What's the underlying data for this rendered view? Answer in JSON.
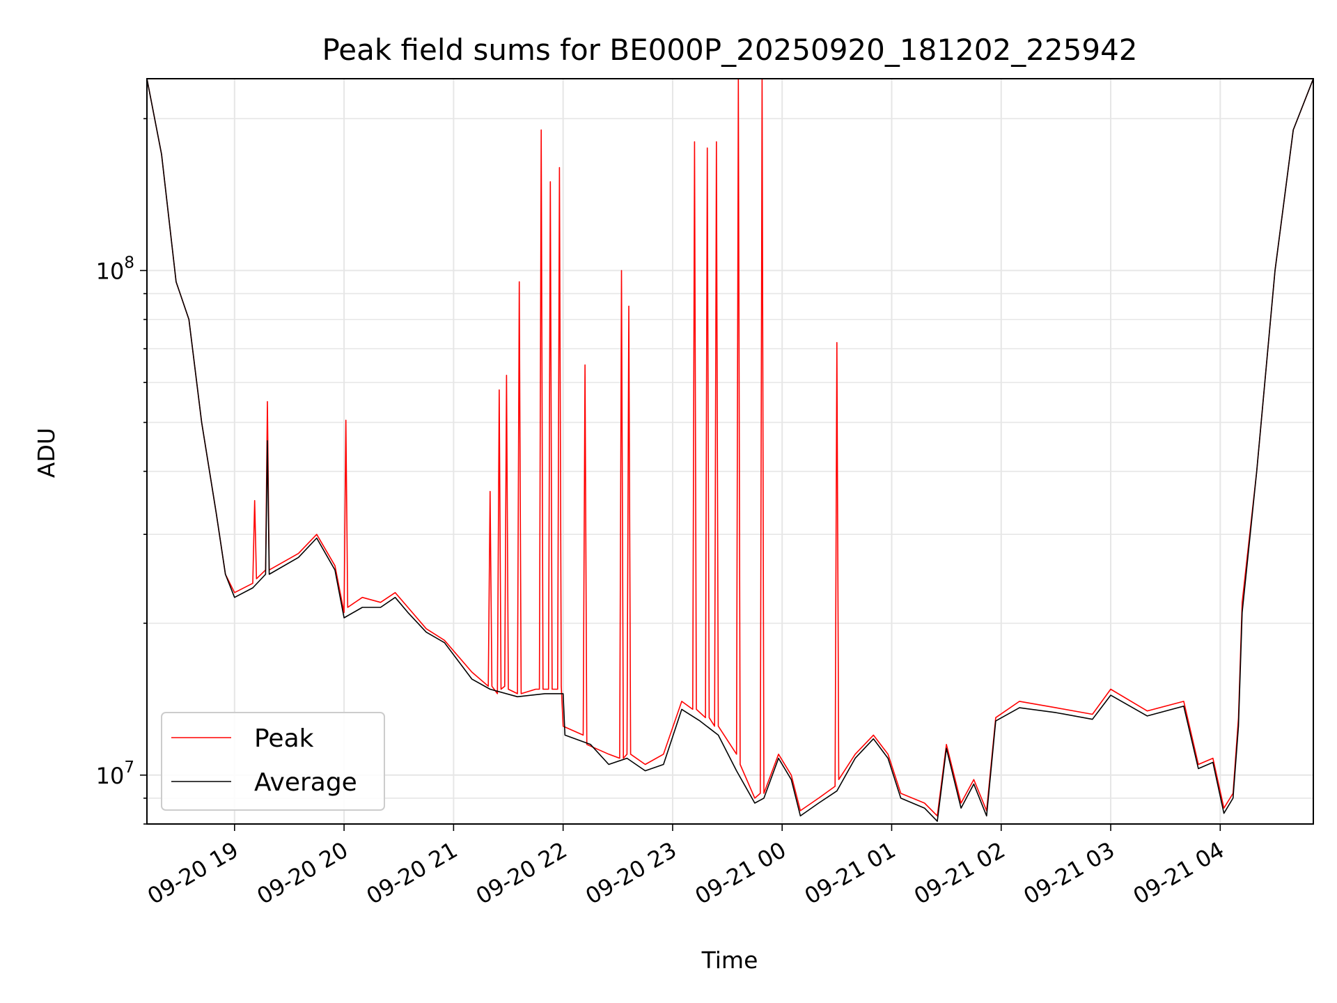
{
  "chart_data": {
    "type": "line",
    "title": "Peak field sums for BE000P_20250920_181202_225942",
    "xlabel": "Time",
    "ylabel": "ADU",
    "y_scale": "log",
    "ylim": [
      8000000,
      240000000
    ],
    "xlim": [
      "2025-09-20 18:12",
      "2025-09-21 04:51"
    ],
    "grid": true,
    "legend_position": "lower-left",
    "x_ticks": [
      {
        "t": "2025-09-20 19:00",
        "label": "09-20 19"
      },
      {
        "t": "2025-09-20 20:00",
        "label": "09-20 20"
      },
      {
        "t": "2025-09-20 21:00",
        "label": "09-20 21"
      },
      {
        "t": "2025-09-20 22:00",
        "label": "09-20 22"
      },
      {
        "t": "2025-09-20 23:00",
        "label": "09-20 23"
      },
      {
        "t": "2025-09-21 00:00",
        "label": "09-21 00"
      },
      {
        "t": "2025-09-21 01:00",
        "label": "09-21 01"
      },
      {
        "t": "2025-09-21 02:00",
        "label": "09-21 02"
      },
      {
        "t": "2025-09-21 03:00",
        "label": "09-21 03"
      },
      {
        "t": "2025-09-21 04:00",
        "label": "09-21 04"
      }
    ],
    "y_ticks": [
      {
        "value": 10000000,
        "base": "10",
        "exp": "7"
      },
      {
        "value": 100000000,
        "base": "10",
        "exp": "8"
      }
    ],
    "series": [
      {
        "name": "Peak",
        "color": "#ff0000",
        "points": [
          [
            "2025-09-20 18:12",
            240000000
          ],
          [
            "2025-09-20 18:20",
            170000000
          ],
          [
            "2025-09-20 18:28",
            95000000
          ],
          [
            "2025-09-20 18:35",
            80000000
          ],
          [
            "2025-09-20 18:42",
            50000000
          ],
          [
            "2025-09-20 18:50",
            33000000
          ],
          [
            "2025-09-20 18:55",
            25000000
          ],
          [
            "2025-09-20 19:00",
            23000000
          ],
          [
            "2025-09-20 19:10",
            24000000
          ],
          [
            "2025-09-20 19:11",
            35000000
          ],
          [
            "2025-09-20 19:12",
            24500000
          ],
          [
            "2025-09-20 19:17",
            25500000
          ],
          [
            "2025-09-20 19:18",
            55000000
          ],
          [
            "2025-09-20 19:19",
            25500000
          ],
          [
            "2025-09-20 19:35",
            27500000
          ],
          [
            "2025-09-20 19:45",
            30000000
          ],
          [
            "2025-09-20 19:55",
            26000000
          ],
          [
            "2025-09-20 20:00",
            21000000
          ],
          [
            "2025-09-20 20:01",
            50500000
          ],
          [
            "2025-09-20 20:02",
            21500000
          ],
          [
            "2025-09-20 20:10",
            22500000
          ],
          [
            "2025-09-20 20:20",
            22000000
          ],
          [
            "2025-09-20 20:28",
            23000000
          ],
          [
            "2025-09-20 20:35",
            21500000
          ],
          [
            "2025-09-20 20:45",
            19500000
          ],
          [
            "2025-09-20 20:55",
            18500000
          ],
          [
            "2025-09-20 21:10",
            16000000
          ],
          [
            "2025-09-20 21:19",
            15000000
          ],
          [
            "2025-09-20 21:20",
            36500000
          ],
          [
            "2025-09-20 21:21",
            15000000
          ],
          [
            "2025-09-20 21:24",
            14500000
          ],
          [
            "2025-09-20 21:25",
            58000000
          ],
          [
            "2025-09-20 21:26",
            14800000
          ],
          [
            "2025-09-20 21:28",
            15000000
          ],
          [
            "2025-09-20 21:29",
            62000000
          ],
          [
            "2025-09-20 21:30",
            14800000
          ],
          [
            "2025-09-20 21:35",
            14500000
          ],
          [
            "2025-09-20 21:36",
            95000000
          ],
          [
            "2025-09-20 21:37",
            14500000
          ],
          [
            "2025-09-20 21:45",
            14800000
          ],
          [
            "2025-09-20 21:47",
            14800000
          ],
          [
            "2025-09-20 21:48",
            190000000
          ],
          [
            "2025-09-20 21:49",
            14800000
          ],
          [
            "2025-09-20 21:52",
            14800000
          ],
          [
            "2025-09-20 21:53",
            150000000
          ],
          [
            "2025-09-20 21:54",
            14800000
          ],
          [
            "2025-09-20 21:57",
            14800000
          ],
          [
            "2025-09-20 21:58",
            160000000
          ],
          [
            "2025-09-20 21:59",
            15000000
          ],
          [
            "2025-09-20 22:00",
            12500000
          ],
          [
            "2025-09-20 22:11",
            12000000
          ],
          [
            "2025-09-20 22:12",
            65000000
          ],
          [
            "2025-09-20 22:13",
            11500000
          ],
          [
            "2025-09-20 22:25",
            11000000
          ],
          [
            "2025-09-20 22:31",
            10800000
          ],
          [
            "2025-09-20 22:32",
            100000000
          ],
          [
            "2025-09-20 22:33",
            10800000
          ],
          [
            "2025-09-20 22:35",
            11000000
          ],
          [
            "2025-09-20 22:36",
            85000000
          ],
          [
            "2025-09-20 22:37",
            11000000
          ],
          [
            "2025-09-20 22:45",
            10500000
          ],
          [
            "2025-09-20 22:55",
            11000000
          ],
          [
            "2025-09-20 23:05",
            14000000
          ],
          [
            "2025-09-20 23:11",
            13500000
          ],
          [
            "2025-09-20 23:12",
            180000000
          ],
          [
            "2025-09-20 23:13",
            13500000
          ],
          [
            "2025-09-20 23:18",
            13000000
          ],
          [
            "2025-09-20 23:19",
            175000000
          ],
          [
            "2025-09-20 23:20",
            13000000
          ],
          [
            "2025-09-20 23:23",
            12500000
          ],
          [
            "2025-09-20 23:24",
            180000000
          ],
          [
            "2025-09-20 23:25",
            12500000
          ],
          [
            "2025-09-20 23:35",
            11000000
          ],
          [
            "2025-09-20 23:36",
            240000000
          ],
          [
            "2025-09-20 23:37",
            10500000
          ],
          [
            "2025-09-20 23:45",
            9000000
          ],
          [
            "2025-09-20 23:48",
            9200000
          ],
          [
            "2025-09-20 23:49",
            240000000
          ],
          [
            "2025-09-20 23:50",
            9200000
          ],
          [
            "2025-09-20 23:58",
            11000000
          ],
          [
            "2025-09-21 00:05",
            10000000
          ],
          [
            "2025-09-21 00:10",
            8500000
          ],
          [
            "2025-09-21 00:20",
            9000000
          ],
          [
            "2025-09-21 00:29",
            9500000
          ],
          [
            "2025-09-21 00:30",
            72000000
          ],
          [
            "2025-09-21 00:31",
            9800000
          ],
          [
            "2025-09-21 00:40",
            11000000
          ],
          [
            "2025-09-21 00:50",
            12000000
          ],
          [
            "2025-09-21 00:58",
            11000000
          ],
          [
            "2025-09-21 01:05",
            9200000
          ],
          [
            "2025-09-21 01:18",
            8800000
          ],
          [
            "2025-09-21 01:25",
            8300000
          ],
          [
            "2025-09-21 01:30",
            11500000
          ],
          [
            "2025-09-21 01:38",
            8800000
          ],
          [
            "2025-09-21 01:45",
            9800000
          ],
          [
            "2025-09-21 01:52",
            8500000
          ],
          [
            "2025-09-21 01:57",
            13000000
          ],
          [
            "2025-09-21 02:10",
            14000000
          ],
          [
            "2025-09-21 02:30",
            13600000
          ],
          [
            "2025-09-21 02:50",
            13200000
          ],
          [
            "2025-09-21 03:00",
            14800000
          ],
          [
            "2025-09-21 03:20",
            13400000
          ],
          [
            "2025-09-21 03:40",
            14000000
          ],
          [
            "2025-09-21 03:48",
            10500000
          ],
          [
            "2025-09-21 03:56",
            10800000
          ],
          [
            "2025-09-21 04:02",
            8600000
          ],
          [
            "2025-09-21 04:07",
            9200000
          ],
          [
            "2025-09-21 04:10",
            13000000
          ],
          [
            "2025-09-21 04:12",
            22000000
          ],
          [
            "2025-09-21 04:20",
            40000000
          ],
          [
            "2025-09-21 04:30",
            100000000
          ],
          [
            "2025-09-21 04:40",
            190000000
          ],
          [
            "2025-09-21 04:51",
            240000000
          ]
        ]
      },
      {
        "name": "Average",
        "color": "#000000",
        "points": [
          [
            "2025-09-20 18:12",
            240000000
          ],
          [
            "2025-09-20 18:20",
            170000000
          ],
          [
            "2025-09-20 18:28",
            95000000
          ],
          [
            "2025-09-20 18:35",
            80000000
          ],
          [
            "2025-09-20 18:42",
            50000000
          ],
          [
            "2025-09-20 18:50",
            33000000
          ],
          [
            "2025-09-20 18:55",
            25000000
          ],
          [
            "2025-09-20 19:00",
            22500000
          ],
          [
            "2025-09-20 19:10",
            23500000
          ],
          [
            "2025-09-20 19:17",
            25000000
          ],
          [
            "2025-09-20 19:18",
            46000000
          ],
          [
            "2025-09-20 19:19",
            25000000
          ],
          [
            "2025-09-20 19:35",
            27000000
          ],
          [
            "2025-09-20 19:45",
            29500000
          ],
          [
            "2025-09-20 19:55",
            25500000
          ],
          [
            "2025-09-20 20:00",
            20500000
          ],
          [
            "2025-09-20 20:10",
            21500000
          ],
          [
            "2025-09-20 20:20",
            21500000
          ],
          [
            "2025-09-20 20:28",
            22500000
          ],
          [
            "2025-09-20 20:35",
            21000000
          ],
          [
            "2025-09-20 20:45",
            19200000
          ],
          [
            "2025-09-20 20:55",
            18300000
          ],
          [
            "2025-09-20 21:10",
            15500000
          ],
          [
            "2025-09-20 21:20",
            14800000
          ],
          [
            "2025-09-20 21:35",
            14300000
          ],
          [
            "2025-09-20 21:50",
            14500000
          ],
          [
            "2025-09-20 22:00",
            14500000
          ],
          [
            "2025-09-20 22:01",
            12000000
          ],
          [
            "2025-09-20 22:15",
            11500000
          ],
          [
            "2025-09-20 22:25",
            10500000
          ],
          [
            "2025-09-20 22:35",
            10800000
          ],
          [
            "2025-09-20 22:45",
            10200000
          ],
          [
            "2025-09-20 22:55",
            10500000
          ],
          [
            "2025-09-20 23:05",
            13500000
          ],
          [
            "2025-09-20 23:15",
            12800000
          ],
          [
            "2025-09-20 23:25",
            12000000
          ],
          [
            "2025-09-20 23:35",
            10200000
          ],
          [
            "2025-09-20 23:45",
            8800000
          ],
          [
            "2025-09-20 23:50",
            9000000
          ],
          [
            "2025-09-20 23:58",
            10800000
          ],
          [
            "2025-09-21 00:05",
            9800000
          ],
          [
            "2025-09-21 00:10",
            8300000
          ],
          [
            "2025-09-21 00:20",
            8800000
          ],
          [
            "2025-09-21 00:30",
            9300000
          ],
          [
            "2025-09-21 00:40",
            10800000
          ],
          [
            "2025-09-21 00:50",
            11800000
          ],
          [
            "2025-09-21 00:58",
            10800000
          ],
          [
            "2025-09-21 01:05",
            9000000
          ],
          [
            "2025-09-21 01:18",
            8600000
          ],
          [
            "2025-09-21 01:25",
            8100000
          ],
          [
            "2025-09-21 01:30",
            11300000
          ],
          [
            "2025-09-21 01:38",
            8600000
          ],
          [
            "2025-09-21 01:45",
            9600000
          ],
          [
            "2025-09-21 01:52",
            8300000
          ],
          [
            "2025-09-21 01:57",
            12800000
          ],
          [
            "2025-09-21 02:10",
            13600000
          ],
          [
            "2025-09-21 02:30",
            13300000
          ],
          [
            "2025-09-21 02:50",
            12900000
          ],
          [
            "2025-09-21 03:00",
            14400000
          ],
          [
            "2025-09-21 03:20",
            13100000
          ],
          [
            "2025-09-21 03:40",
            13700000
          ],
          [
            "2025-09-21 03:48",
            10300000
          ],
          [
            "2025-09-21 03:56",
            10600000
          ],
          [
            "2025-09-21 04:02",
            8400000
          ],
          [
            "2025-09-21 04:07",
            9000000
          ],
          [
            "2025-09-21 04:10",
            12500000
          ],
          [
            "2025-09-21 04:12",
            21000000
          ],
          [
            "2025-09-21 04:20",
            40000000
          ],
          [
            "2025-09-21 04:30",
            100000000
          ],
          [
            "2025-09-21 04:40",
            190000000
          ],
          [
            "2025-09-21 04:51",
            240000000
          ]
        ]
      }
    ]
  }
}
